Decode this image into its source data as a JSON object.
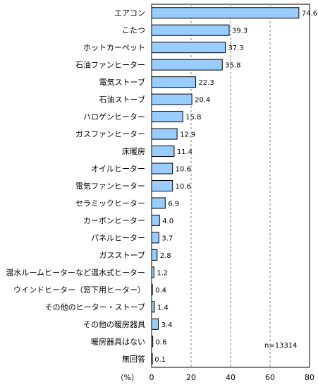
{
  "chart_data": {
    "type": "bar",
    "orientation": "horizontal",
    "categories": [
      "エアコン",
      "こたつ",
      "ホットカーペット",
      "石油ファンヒーター",
      "電気ストーブ",
      "石油ストーブ",
      "ハロゲンヒーター",
      "ガスファンヒーター",
      "床暖房",
      "オイルヒーター",
      "電気ファンヒーター",
      "セラミックヒーター",
      "カーボンヒーター",
      "パネルヒーター",
      "ガスストーブ",
      "温水ルームヒーターなど温水式ヒーター",
      "ウインドヒーター（窓下用ヒーター）",
      "その他のヒーター・ストーブ",
      "その他の暖房器具",
      "暖房器具はない",
      "無回答"
    ],
    "values": [
      74.6,
      39.3,
      37.3,
      35.8,
      22.3,
      20.4,
      15.8,
      12.9,
      11.4,
      10.6,
      10.6,
      6.9,
      4.0,
      3.7,
      2.8,
      1.2,
      0.4,
      1.4,
      3.4,
      0.6,
      0.1
    ],
    "value_labels": [
      "74.6",
      "39.3",
      "37.3",
      "35.8",
      "22.3",
      "20.4",
      "15.8",
      "12.9",
      "11.4",
      "10.6",
      "10.6",
      "6.9",
      "4.0",
      "3.7",
      "2.8",
      "1.2",
      "0.4",
      "1.4",
      "3.4",
      "0.6",
      "0.1"
    ],
    "xlim": [
      0,
      80
    ],
    "xticks": [
      "0",
      "20",
      "40",
      "60",
      "80"
    ],
    "xlabel": "（%）",
    "grid": "vertical-dashed",
    "annotation": "n=13314",
    "bar_color": "#99ccff",
    "bar_edge": "#000000"
  }
}
